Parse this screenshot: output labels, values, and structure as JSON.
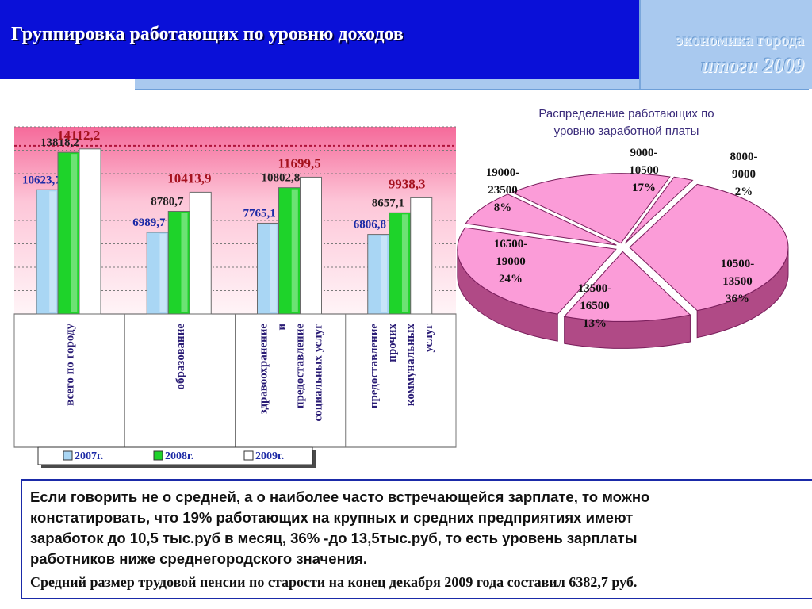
{
  "header": {
    "title": "Группировка работающих по уровню доходов",
    "logo_line1": "экономика города",
    "logo_line2": "итоги  2009"
  },
  "chart_data": [
    {
      "type": "bar",
      "categories": [
        "всего по городу",
        "образование",
        "здравоохранение и предоставление социальных услуг",
        "предоставление прочих коммунальных услуг"
      ],
      "category_lines": [
        [
          "всего по городу"
        ],
        [
          "образование"
        ],
        [
          "здравоохранение",
          "и",
          "предоставление",
          "социальных услуг"
        ],
        [
          "предоставление",
          "прочих",
          "коммунальных",
          "услуг"
        ]
      ],
      "series": [
        {
          "name": "2007г.",
          "color": "#a9d6f4",
          "values": [
            10623.7,
            6989.7,
            7765.1,
            6806.8
          ],
          "labels": [
            "10623,7",
            "6989,7",
            "7765,1",
            "6806,8"
          ],
          "label_color": "#1c2aa6"
        },
        {
          "name": "2008г.",
          "color": "#1ed32a",
          "values": [
            13818.2,
            8780.7,
            10802.8,
            8657.1
          ],
          "labels": [
            "13818,2",
            "8780,7",
            "10802,8",
            "8657,1"
          ],
          "label_color": "#1f1f1f"
        },
        {
          "name": "2009г.",
          "color": "#ffffff",
          "values": [
            14112.2,
            10413.9,
            11699.5,
            9938.3
          ],
          "labels": [
            "14112,2",
            "10413,9",
            "11699,5",
            "9938,3"
          ],
          "label_color": "#a5121e"
        }
      ],
      "ylim": [
        0,
        16000
      ],
      "grid": true,
      "legend": "bottom"
    },
    {
      "type": "pie",
      "title_lines": [
        "Распределение работающих по",
        "уровню заработной платы"
      ],
      "slices": [
        {
          "label": "8000-9000",
          "label_lines": [
            "8000-",
            "9000"
          ],
          "value": 2,
          "value_label": "2%"
        },
        {
          "label": "10500-13500",
          "label_lines": [
            "10500-",
            "13500"
          ],
          "value": 36,
          "value_label": "36%"
        },
        {
          "label": "13500-16500",
          "label_lines": [
            "13500-",
            "16500"
          ],
          "value": 13,
          "value_label": "13%"
        },
        {
          "label": "16500-19000",
          "label_lines": [
            "16500-",
            "19000"
          ],
          "value": 24,
          "value_label": "24%"
        },
        {
          "label": "19000-23500",
          "label_lines": [
            "19000-",
            "23500"
          ],
          "value": 8,
          "value_label": "8%"
        },
        {
          "label": "9000-10500",
          "label_lines": [
            "9000-",
            "10500"
          ],
          "value": 17,
          "value_label": "17%"
        }
      ],
      "colors": {
        "top": "#fb9cd8",
        "side": "#b04a86",
        "edge": "#7a1e5c"
      }
    }
  ],
  "text": {
    "paragraph": "Если говорить не о средней, а о наиболее часто встречающейся зарплате, то можно\n констатировать, что  19% работающих на крупных и средних предприятиях имеют\n заработок до 10,5 тыс.руб в месяц, 36% -до 13,5тыс.руб, то есть уровень зарплаты\n работников ниже среднегородского значения.",
    "note": "Средний размер трудовой пенсии по старости на конец декабря 2009 года составил 6382,7 руб."
  }
}
